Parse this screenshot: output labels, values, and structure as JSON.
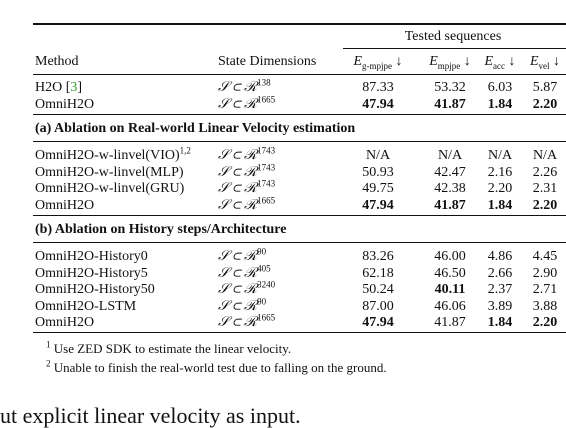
{
  "table": {
    "group_header": "Tested sequences",
    "columns": [
      {
        "label": "Method"
      },
      {
        "label": "State Dimensions"
      },
      {
        "symbol": "E",
        "sub": "g-mpjpe",
        "arrow": "↓"
      },
      {
        "symbol": "E",
        "sub": "mpjpe",
        "arrow": "↓"
      },
      {
        "symbol": "E",
        "sub": "acc",
        "arrow": "↓"
      },
      {
        "symbol": "E",
        "sub": "vel",
        "arrow": "↓"
      }
    ],
    "blocks": [
      {
        "rows": [
          {
            "method": "H2O",
            "citation": {
              "open": "[",
              "ref": "3",
              "close": "]"
            },
            "state": {
              "set": "𝒮 ⊂ ℛ",
              "dim": "138"
            },
            "values": [
              "87.33",
              "53.32",
              "6.03",
              "5.87"
            ],
            "bold": []
          },
          {
            "method": "OmniH2O",
            "state": {
              "set": "𝒮 ⊂ ℛ",
              "dim": "1665"
            },
            "values": [
              "47.94",
              "41.87",
              "1.84",
              "2.20"
            ],
            "bold": [
              0,
              1,
              2,
              3
            ]
          }
        ]
      },
      {
        "title": "(a) Ablation on Real-world Linear Velocity estimation",
        "rows": [
          {
            "method": "OmniH2O-w-linvel(VIO)",
            "sup": "1,2",
            "state": {
              "set": "𝒮 ⊂ ℛ",
              "dim": "1743"
            },
            "values": [
              "N/A",
              "N/A",
              "N/A",
              "N/A"
            ],
            "bold": []
          },
          {
            "method": "OmniH2O-w-linvel(MLP)",
            "state": {
              "set": "𝒮 ⊂ ℛ",
              "dim": "1743"
            },
            "values": [
              "50.93",
              "42.47",
              "2.16",
              "2.26"
            ],
            "bold": []
          },
          {
            "method": "OmniH2O-w-linvel(GRU)",
            "state": {
              "set": "𝒮 ⊂ ℛ",
              "dim": "1743"
            },
            "values": [
              "49.75",
              "42.38",
              "2.20",
              "2.31"
            ],
            "bold": []
          },
          {
            "method": "OmniH2O",
            "state": {
              "set": "𝒮 ⊂ ℛ",
              "dim": "1665"
            },
            "values": [
              "47.94",
              "41.87",
              "1.84",
              "2.20"
            ],
            "bold": [
              0,
              1,
              2,
              3
            ]
          }
        ]
      },
      {
        "title": "(b) Ablation on History steps/Architecture",
        "rows": [
          {
            "method": "OmniH2O-History0",
            "state": {
              "set": "𝒮 ⊂ ℛ",
              "dim": "90"
            },
            "values": [
              "83.26",
              "46.00",
              "4.86",
              "4.45"
            ],
            "bold": []
          },
          {
            "method": "OmniH2O-History5",
            "state": {
              "set": "𝒮 ⊂ ℛ",
              "dim": "405"
            },
            "values": [
              "62.18",
              "46.50",
              "2.66",
              "2.90"
            ],
            "bold": []
          },
          {
            "method": "OmniH2O-History50",
            "state": {
              "set": "𝒮 ⊂ ℛ",
              "dim": "3240"
            },
            "values": [
              "50.24",
              "40.11",
              "2.37",
              "2.71"
            ],
            "bold": [
              1
            ]
          },
          {
            "method": "OmniH2O-LSTM",
            "state": {
              "set": "𝒮 ⊂ ℛ",
              "dim": "90"
            },
            "values": [
              "87.00",
              "46.06",
              "3.89",
              "3.88"
            ],
            "bold": []
          },
          {
            "method": "OmniH2O",
            "state": {
              "set": "𝒮 ⊂ ℛ",
              "dim": "1665"
            },
            "values": [
              "47.94",
              "41.87",
              "1.84",
              "2.20"
            ],
            "bold": [
              0,
              2,
              3
            ]
          }
        ]
      }
    ]
  },
  "footnotes": [
    {
      "mark": "1",
      "text": "Use ZED SDK to estimate the linear velocity."
    },
    {
      "mark": "2",
      "text": "Unable to finish the real-world test due to falling on the ground."
    }
  ],
  "trailing_text": "ut explicit linear velocity as input."
}
